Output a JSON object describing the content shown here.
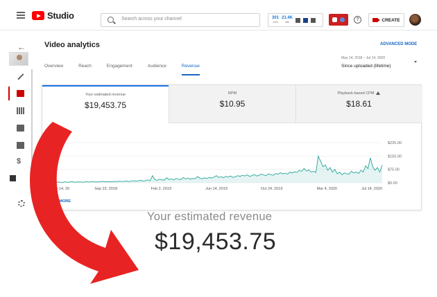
{
  "topbar": {
    "app_name": "Studio",
    "search_placeholder": "Search across your channel",
    "stats": [
      {
        "value": "301",
        "label": "10m"
      },
      {
        "value": "21.4K",
        "label": "48h"
      }
    ],
    "create_label": "CREATE",
    "help_glyph": "?"
  },
  "sidebar": {
    "dollar_glyph": "$",
    "back_glyph": "←"
  },
  "page": {
    "title": "Video analytics",
    "advanced_mode": "ADVANCED MODE",
    "tabs": [
      "Overview",
      "Reach",
      "Engagement",
      "Audience",
      "Revenue"
    ],
    "active_tab": "Revenue",
    "date_range": "May 14, 2018 – Jul 14, 2020",
    "date_preset": "Since uploaded (lifetime)"
  },
  "metrics": [
    {
      "label": "Your estimated revenue",
      "value": "$19,453.75"
    },
    {
      "label": "RPM",
      "value": "$10.95"
    },
    {
      "label": "Playback-based CPM",
      "value": "$18.61"
    }
  ],
  "see_more": "SEE MORE",
  "callout": {
    "label": "Your estimated revenue",
    "value": "$19,453.75"
  },
  "colors": {
    "accent_blue": "#1565c0",
    "brand_red": "#ff0000",
    "chart_line": "#26a69a",
    "arrow_red": "#e82323"
  },
  "chart_data": {
    "type": "area",
    "x_ticks": [
      "May 14, 20",
      "Sep 23, 2018",
      "Feb 2, 2019",
      "Jun 14, 2019",
      "Oct 24, 2019",
      "Mar 4, 2020",
      "Jul 14, 2020"
    ],
    "y_ticks": [
      "$0.00",
      "$75.00",
      "$150.00",
      "$225.00"
    ],
    "ylim": [
      0,
      225
    ],
    "series": [
      {
        "values": [
          2,
          3,
          2,
          4,
          3,
          2,
          5,
          3,
          4,
          6,
          3,
          4,
          5,
          4,
          3,
          6,
          4,
          5,
          7,
          4,
          5,
          6,
          8,
          5,
          6,
          7,
          5,
          8,
          6,
          9,
          7,
          8,
          10,
          7,
          9,
          12,
          9,
          11,
          14,
          10,
          12,
          16,
          12,
          40,
          18,
          14,
          20,
          16,
          15,
          28,
          18,
          22,
          16,
          24,
          20,
          18,
          30,
          22,
          26,
          20,
          24,
          22,
          35,
          26,
          22,
          28,
          24,
          30,
          26,
          32,
          40,
          30,
          34,
          28,
          36,
          32,
          38,
          30,
          34,
          40,
          36,
          42,
          38,
          44,
          36,
          40,
          46,
          38,
          42,
          48,
          44,
          40,
          50,
          46,
          42,
          52,
          48,
          56,
          50,
          54,
          48,
          60,
          55,
          62,
          58,
          70,
          64,
          80,
          66,
          72,
          60,
          64,
          58,
          150,
          120,
          90,
          100,
          70,
          85,
          60,
          75,
          50,
          60,
          45,
          55,
          50,
          48,
          65,
          55,
          60,
          52,
          70,
          60,
          95,
          80,
          140,
          90,
          70,
          85,
          60,
          100
        ]
      }
    ]
  }
}
